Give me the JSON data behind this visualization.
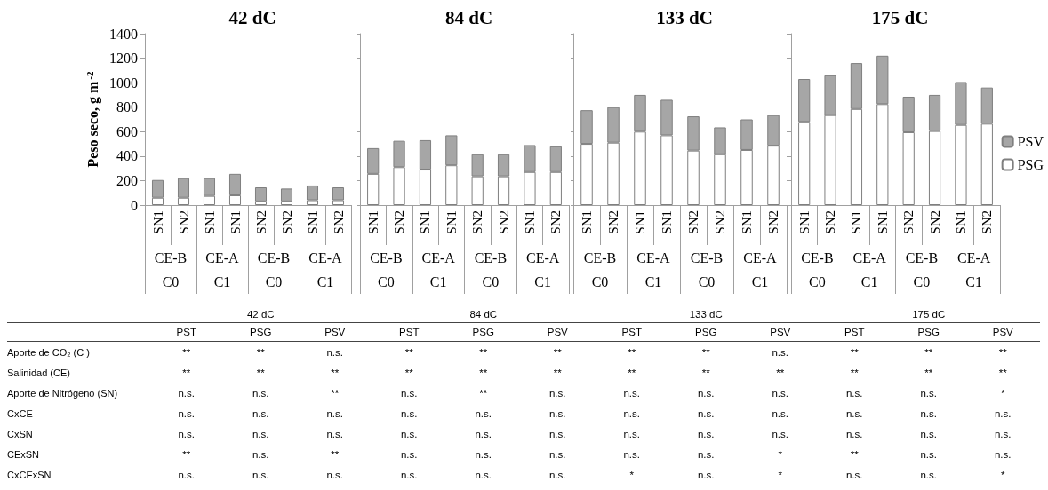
{
  "chart_data": [
    {
      "type": "bar",
      "title": "42 dC",
      "ylabel": "Peso seco, g m$^{-2}$",
      "stacked": true,
      "categories": [
        "SN1",
        "SN2",
        "SN1",
        "SN1",
        "SN2",
        "SN2",
        "SN1",
        "SN2"
      ],
      "annotations": [
        "CE-B",
        "CE-A",
        "CE-B",
        "CE-A",
        "C0",
        "C1",
        "C0",
        "C1"
      ],
      "ylim": [
        0,
        1400
      ],
      "yticks": [
        0,
        200,
        400,
        600,
        800,
        1000,
        1200,
        1400
      ],
      "series": [
        {
          "color": "#ffffff",
          "values": [
            60,
            60,
            75,
            80,
            30,
            30,
            40,
            40
          ]
        },
        {
          "color": "#a6a6a6",
          "values": [
            145,
            160,
            145,
            175,
            115,
            105,
            120,
            105
          ]
        }
      ]
    },
    {
      "type": "bar",
      "title": "84 dC",
      "stacked": true,
      "tick_labels": "x",
      "categories": [
        "SN1",
        "SN2",
        "SN1",
        "SN1",
        "SN2",
        "SN2",
        "SN1",
        "SN2"
      ],
      "annotations": [
        "CE-B",
        "CE-A",
        "CE-B",
        "CE-A",
        "C0",
        "C1",
        "C0",
        "C1"
      ],
      "ylim": [
        0,
        1400
      ],
      "yticks": [
        0,
        200,
        400,
        600,
        800,
        1000,
        1200,
        1400
      ],
      "series": [
        {
          "color": "#ffffff",
          "values": [
            255,
            310,
            290,
            325,
            235,
            235,
            270,
            270
          ]
        },
        {
          "color": "#a6a6a6",
          "values": [
            210,
            215,
            240,
            245,
            180,
            180,
            220,
            210
          ]
        }
      ]
    },
    {
      "type": "bar",
      "title": "133 dC",
      "stacked": true,
      "tick_labels": "x",
      "categories": [
        "SN1",
        "SN2",
        "SN1",
        "SN1",
        "SN2",
        "SN2",
        "SN1",
        "SN2"
      ],
      "annotations": [
        "CE-B",
        "CE-A",
        "CE-B",
        "CE-A",
        "C0",
        "C1",
        "C0",
        "C1"
      ],
      "ylim": [
        0,
        1400
      ],
      "yticks": [
        0,
        200,
        400,
        600,
        800,
        1000,
        1200,
        1400
      ],
      "series": [
        {
          "color": "#ffffff",
          "values": [
            500,
            510,
            600,
            570,
            445,
            415,
            450,
            485
          ]
        },
        {
          "color": "#a6a6a6",
          "values": [
            275,
            290,
            300,
            290,
            280,
            220,
            250,
            250
          ]
        }
      ]
    },
    {
      "type": "bar",
      "title": "175 dC",
      "stacked": true,
      "tick_labels": "x",
      "legend": "right",
      "categories": [
        "SN1",
        "SN2",
        "SN1",
        "SN1",
        "SN2",
        "SN2",
        "SN1",
        "SN2"
      ],
      "annotations": [
        "CE-B",
        "CE-A",
        "CE-B",
        "CE-A",
        "C0",
        "C1",
        "C0",
        "C1"
      ],
      "ylim": [
        0,
        1400
      ],
      "yticks": [
        0,
        200,
        400,
        600,
        800,
        1000,
        1200,
        1400
      ],
      "series": [
        {
          "name": "PSG",
          "color": "#ffffff",
          "values": [
            680,
            735,
            785,
            825,
            595,
            605,
            655,
            665
          ]
        },
        {
          "name": "PSV",
          "color": "#a6a6a6",
          "values": [
            350,
            325,
            375,
            395,
            290,
            295,
            350,
            295
          ]
        }
      ]
    },
    {
      "type": "other",
      "annotations": [
        "42 dC",
        "84 dC",
        "133 dC",
        "175 dC"
      ],
      "categories": [
        "PST",
        "PSG",
        "PSV",
        "PST",
        "PSG",
        "PSV",
        "PST",
        "PSG",
        "PSV",
        "PST",
        "PSG",
        "PSV"
      ],
      "y_categories": [
        "Aporte de CO₂ (C )",
        "Salinidad (CE)",
        "Aporte de Nitrógeno (SN)",
        "CxCE",
        "CxSN",
        "CExSN",
        "CxCExSN"
      ],
      "cell_labels": [
        [
          "**",
          "**",
          "n.s.",
          "**",
          "**",
          "**",
          "**",
          "**",
          "n.s.",
          "**",
          "**",
          "**"
        ],
        [
          "**",
          "**",
          "**",
          "**",
          "**",
          "**",
          "**",
          "**",
          "**",
          "**",
          "**",
          "**"
        ],
        [
          "n.s.",
          "n.s.",
          "**",
          "n.s.",
          "**",
          "n.s.",
          "n.s.",
          "n.s.",
          "n.s.",
          "n.s.",
          "n.s.",
          "*"
        ],
        [
          "n.s.",
          "n.s.",
          "n.s.",
          "n.s.",
          "n.s.",
          "n.s.",
          "n.s.",
          "n.s.",
          "n.s.",
          "n.s.",
          "n.s.",
          "n.s."
        ],
        [
          "n.s.",
          "n.s.",
          "n.s.",
          "n.s.",
          "n.s.",
          "n.s.",
          "n.s.",
          "n.s.",
          "n.s.",
          "n.s.",
          "n.s.",
          "n.s."
        ],
        [
          "**",
          "n.s.",
          "**",
          "n.s.",
          "n.s.",
          "n.s.",
          "n.s.",
          "n.s.",
          "*",
          "**",
          "n.s.",
          "n.s."
        ],
        [
          "n.s.",
          "n.s.",
          "n.s.",
          "n.s.",
          "n.s.",
          "n.s.",
          "*",
          "n.s.",
          "*",
          "n.s.",
          "n.s.",
          "*"
        ]
      ]
    }
  ]
}
